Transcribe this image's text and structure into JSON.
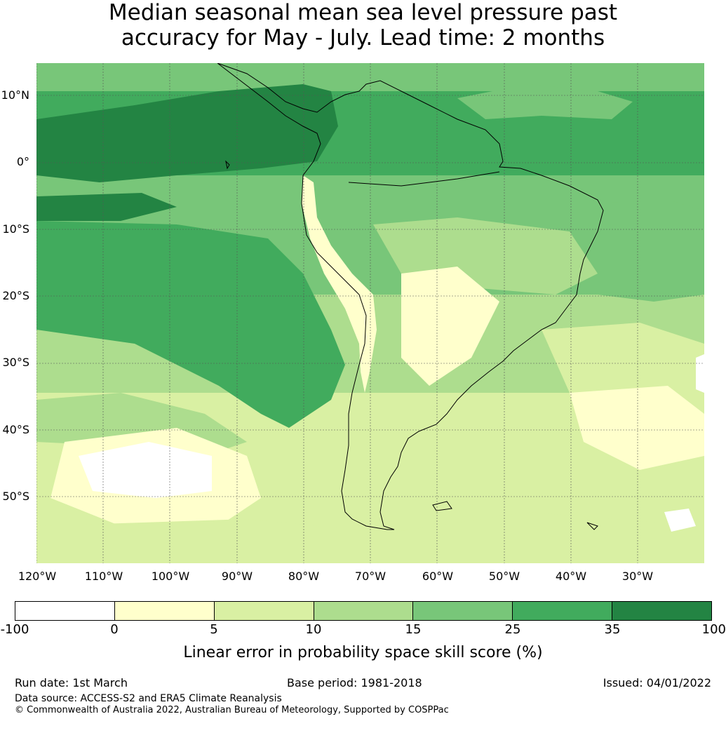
{
  "title_line1": "Median seasonal mean sea level pressure past",
  "title_line2": "accuracy for May - July. Lead time: 2 months",
  "map": {
    "lat_labels": [
      "10°N",
      "0°",
      "10°S",
      "20°S",
      "30°S",
      "40°S",
      "50°S"
    ],
    "lon_labels": [
      "120°W",
      "110°W",
      "100°W",
      "90°W",
      "80°W",
      "70°W",
      "60°W",
      "50°W",
      "40°W",
      "30°W"
    ],
    "colors": {
      "sea_dominant": "#41ab5d",
      "very_high": "#238443",
      "high": "#41ab5d",
      "mid": "#78c679",
      "low": "#addd8e",
      "very_low": "#d9f0a3",
      "minimal": "#ffffcc",
      "negative": "#ffffff",
      "coast": "#000000",
      "grid": "#555555"
    }
  },
  "colorbar": {
    "ticks": [
      "-100",
      "0",
      "5",
      "10",
      "15",
      "25",
      "35",
      "100"
    ],
    "colors": [
      "#ffffff",
      "#ffffcc",
      "#d9f0a3",
      "#addd8e",
      "#78c679",
      "#41ab5d",
      "#238443"
    ],
    "label": "Linear error in probability space skill score (%)"
  },
  "footer": {
    "run_date": "Run date: 1st March",
    "base_period": "Base period: 1981-2018",
    "issued": "Issued: 04/01/2022",
    "data_source": "Data source: ACCESS-S2 and ERA5 Climate Reanalysis",
    "copyright": "© Commonwealth of Australia 2022, Australian Bureau of Meteorology, Supported by COSPPac"
  }
}
